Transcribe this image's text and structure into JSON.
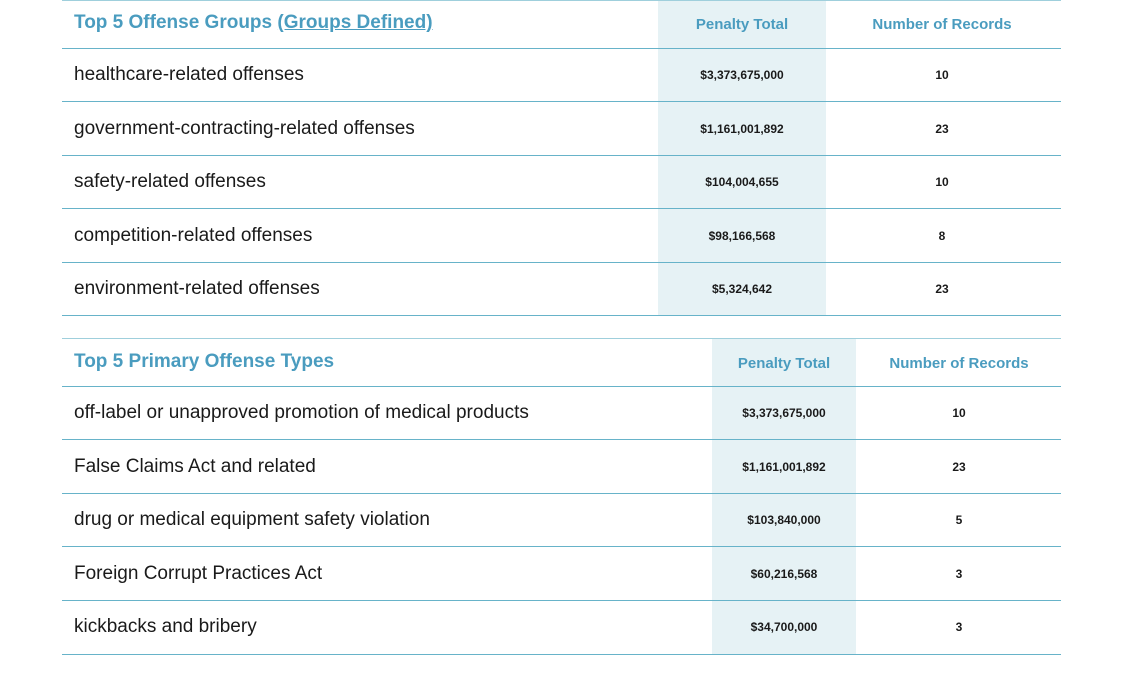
{
  "groups_table": {
    "title_prefix": "Top 5 Offense Groups ",
    "title_link": "(Groups Defined)",
    "col_penalty": "Penalty Total",
    "col_records": "Number of Records",
    "rows": [
      {
        "name": "healthcare-related offenses",
        "penalty": "$3,373,675,000",
        "records": "10"
      },
      {
        "name": "government-contracting-related offenses",
        "penalty": "$1,161,001,892",
        "records": "23"
      },
      {
        "name": "safety-related offenses",
        "penalty": "$104,004,655",
        "records": "10"
      },
      {
        "name": "competition-related offenses",
        "penalty": "$98,166,568",
        "records": "8"
      },
      {
        "name": "environment-related offenses",
        "penalty": "$5,324,642",
        "records": "23"
      }
    ]
  },
  "types_table": {
    "title": "Top 5 Primary Offense Types",
    "col_penalty": "Penalty Total",
    "col_records": "Number of Records",
    "rows": [
      {
        "name": "off-label or unapproved promotion of medical products",
        "penalty": "$3,373,675,000",
        "records": "10"
      },
      {
        "name": "False Claims Act and related",
        "penalty": "$1,161,001,892",
        "records": "23"
      },
      {
        "name": "drug or medical equipment safety violation",
        "penalty": "$103,840,000",
        "records": "5"
      },
      {
        "name": "Foreign Corrupt Practices Act",
        "penalty": "$60,216,568",
        "records": "3"
      },
      {
        "name": "kickbacks and bribery",
        "penalty": "$34,700,000",
        "records": "3"
      }
    ]
  }
}
